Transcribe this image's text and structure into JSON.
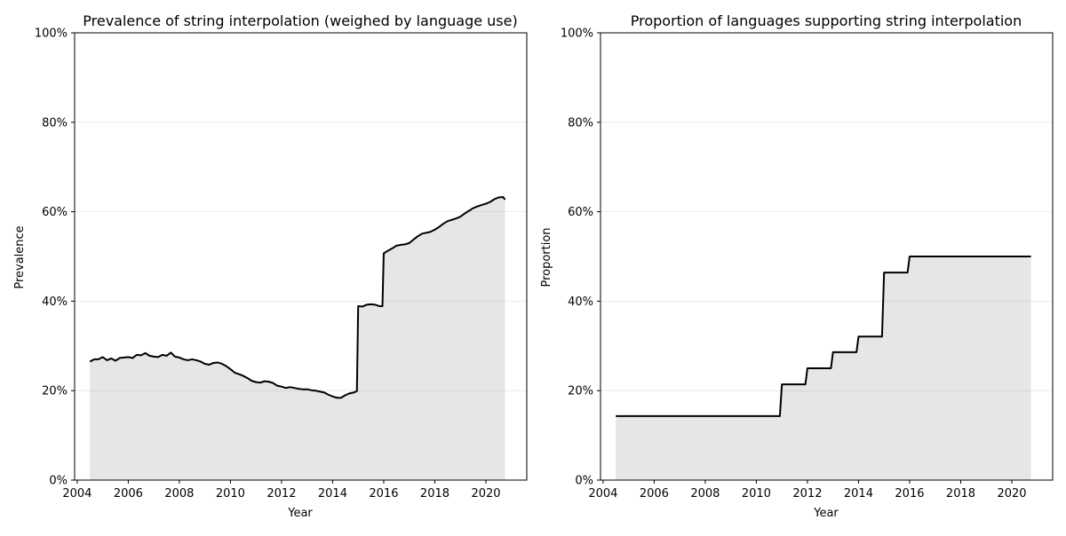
{
  "chart_data": [
    {
      "type": "area",
      "title": "Prevalence of string interpolation (weighed by language use)",
      "xlabel": "Year",
      "ylabel": "Prevalence",
      "xlim": [
        2003.9,
        2021.6
      ],
      "ylim": [
        0,
        1
      ],
      "xticks": [
        2004,
        2006,
        2008,
        2010,
        2012,
        2014,
        2016,
        2018,
        2020
      ],
      "yticks": [
        0,
        0.2,
        0.4,
        0.6,
        0.8,
        1.0
      ],
      "ytick_labels": [
        "0%",
        "20%",
        "40%",
        "60%",
        "80%",
        "100%"
      ],
      "grid": "y",
      "series": [
        {
          "x": [
            2004.5,
            2004.67,
            2004.83,
            2005.0,
            2005.17,
            2005.33,
            2005.5,
            2005.67,
            2005.83,
            2006.0,
            2006.17,
            2006.33,
            2006.5,
            2006.67,
            2006.83,
            2007.0,
            2007.17,
            2007.33,
            2007.5,
            2007.67,
            2007.83,
            2008.0,
            2008.17,
            2008.33,
            2008.5,
            2008.67,
            2008.83,
            2009.0,
            2009.17,
            2009.33,
            2009.5,
            2009.67,
            2009.83,
            2010.0,
            2010.17,
            2010.33,
            2010.5,
            2010.67,
            2010.83,
            2011.0,
            2011.17,
            2011.33,
            2011.5,
            2011.67,
            2011.83,
            2012.0,
            2012.17,
            2012.33,
            2012.5,
            2012.67,
            2012.83,
            2013.0,
            2013.17,
            2013.33,
            2013.5,
            2013.67,
            2013.83,
            2014.0,
            2014.17,
            2014.33,
            2014.5,
            2014.67,
            2014.83,
            2014.95,
            2015.0,
            2015.17,
            2015.33,
            2015.5,
            2015.67,
            2015.83,
            2015.95,
            2016.0,
            2016.17,
            2016.33,
            2016.5,
            2016.67,
            2016.83,
            2017.0,
            2017.17,
            2017.33,
            2017.5,
            2017.67,
            2017.83,
            2018.0,
            2018.17,
            2018.33,
            2018.5,
            2018.67,
            2018.83,
            2019.0,
            2019.17,
            2019.33,
            2019.5,
            2019.67,
            2019.83,
            2020.0,
            2020.17,
            2020.33,
            2020.5,
            2020.67,
            2020.75
          ],
          "y": [
            0.265,
            0.27,
            0.27,
            0.275,
            0.268,
            0.272,
            0.267,
            0.273,
            0.274,
            0.275,
            0.273,
            0.28,
            0.279,
            0.284,
            0.278,
            0.276,
            0.275,
            0.28,
            0.278,
            0.285,
            0.276,
            0.274,
            0.27,
            0.268,
            0.27,
            0.268,
            0.265,
            0.26,
            0.258,
            0.262,
            0.263,
            0.26,
            0.255,
            0.248,
            0.24,
            0.237,
            0.233,
            0.228,
            0.222,
            0.219,
            0.218,
            0.221,
            0.22,
            0.217,
            0.211,
            0.209,
            0.206,
            0.208,
            0.206,
            0.204,
            0.203,
            0.203,
            0.201,
            0.2,
            0.198,
            0.196,
            0.191,
            0.187,
            0.184,
            0.184,
            0.19,
            0.194,
            0.196,
            0.199,
            0.389,
            0.388,
            0.392,
            0.393,
            0.392,
            0.389,
            0.389,
            0.507,
            0.513,
            0.518,
            0.524,
            0.526,
            0.527,
            0.53,
            0.538,
            0.545,
            0.551,
            0.553,
            0.555,
            0.56,
            0.566,
            0.573,
            0.579,
            0.582,
            0.585,
            0.589,
            0.596,
            0.602,
            0.608,
            0.612,
            0.615,
            0.618,
            0.622,
            0.628,
            0.632,
            0.633,
            0.627
          ]
        }
      ]
    },
    {
      "type": "area",
      "title": "Proportion of languages supporting string interpolation",
      "xlabel": "Year",
      "ylabel": "Proportion",
      "xlim": [
        2003.9,
        2021.6
      ],
      "ylim": [
        0,
        1
      ],
      "xticks": [
        2004,
        2006,
        2008,
        2010,
        2012,
        2014,
        2016,
        2018,
        2020
      ],
      "yticks": [
        0,
        0.2,
        0.4,
        0.6,
        0.8,
        1.0
      ],
      "ytick_labels": [
        "0%",
        "20%",
        "40%",
        "60%",
        "80%",
        "100%"
      ],
      "grid": "y",
      "series": [
        {
          "x": [
            2004.5,
            2010.92,
            2011.0,
            2011.92,
            2012.0,
            2012.92,
            2013.0,
            2013.92,
            2014.0,
            2014.92,
            2015.0,
            2015.92,
            2016.0,
            2020.75
          ],
          "y": [
            0.143,
            0.143,
            0.214,
            0.214,
            0.25,
            0.25,
            0.286,
            0.286,
            0.321,
            0.321,
            0.464,
            0.464,
            0.5,
            0.5
          ]
        }
      ]
    }
  ]
}
